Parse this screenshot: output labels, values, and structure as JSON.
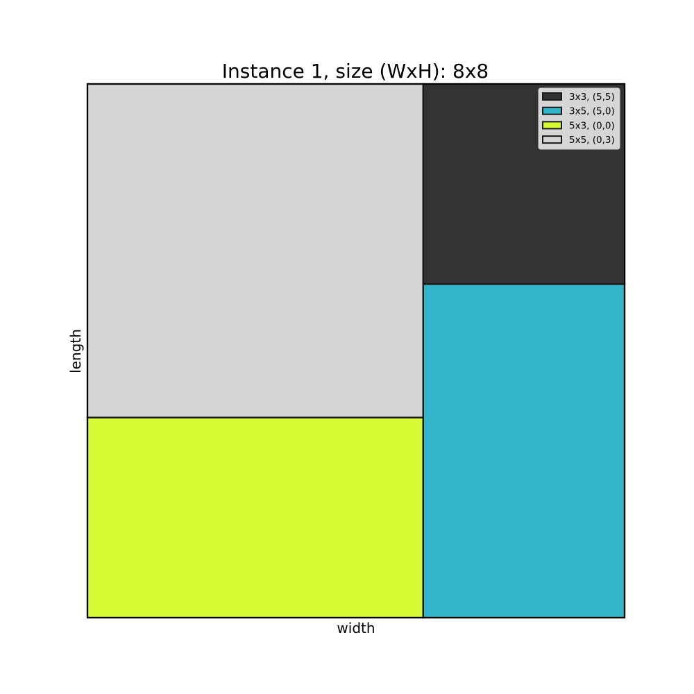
{
  "chart_data": {
    "type": "rectangle-packing",
    "title": "Instance 1, size (WxH): 8x8",
    "xlabel": "width",
    "ylabel": "length",
    "container": {
      "width": 8,
      "height": 8
    },
    "xlim": [
      0,
      8
    ],
    "ylim": [
      0,
      8
    ],
    "grid": false,
    "legend_position": "top-right",
    "rectangles": [
      {
        "label": "3x3, (5,5)",
        "w": 3,
        "h": 3,
        "x": 5,
        "y": 5,
        "color": "#333333"
      },
      {
        "label": "3x5, (5,0)",
        "w": 3,
        "h": 5,
        "x": 5,
        "y": 0,
        "color": "#33b5c9"
      },
      {
        "label": "5x3, (0,0)",
        "w": 5,
        "h": 3,
        "x": 0,
        "y": 0,
        "color": "#d6fb33"
      },
      {
        "label": "5x5, (0,3)",
        "w": 5,
        "h": 5,
        "x": 0,
        "y": 3,
        "color": "#d6d6d6"
      }
    ]
  }
}
